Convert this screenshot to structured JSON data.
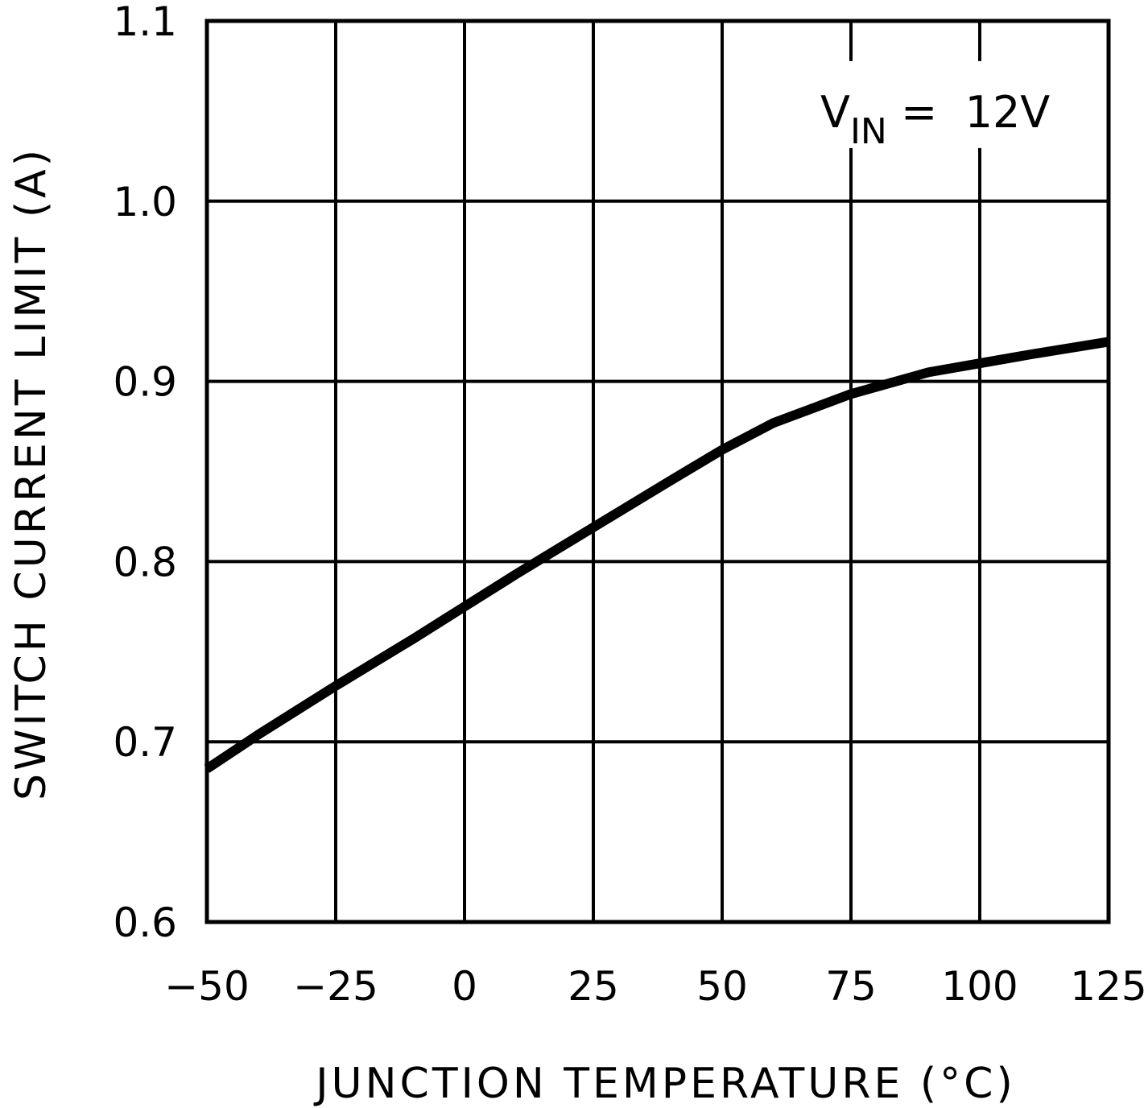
{
  "chart_data": {
    "type": "line",
    "title": "",
    "xlabel": "JUNCTION TEMPERATURE (°C)",
    "ylabel": "SWITCH CURRENT LIMIT (A)",
    "xlim": [
      -50,
      125
    ],
    "ylim": [
      0.6,
      1.1
    ],
    "grid": true,
    "xticks": [
      -50,
      -25,
      0,
      25,
      50,
      75,
      100,
      125
    ],
    "yticks": [
      0.6,
      0.7,
      0.8,
      0.9,
      1.0,
      1.1
    ],
    "xtick_labels": [
      "−50",
      "−25",
      "0",
      "25",
      "50",
      "75",
      "100",
      "125"
    ],
    "ytick_labels": [
      "0.6",
      "0.7",
      "0.8",
      "0.9",
      "1.0",
      "1.1"
    ],
    "annotation": {
      "main": "V",
      "subscript": "IN",
      "rest": " =  12V"
    },
    "series": [
      {
        "x": [
          -50,
          -40,
          -25,
          -10,
          0,
          10,
          25,
          40,
          50,
          60,
          75,
          90,
          100,
          110,
          125
        ],
        "y": [
          0.685,
          0.704,
          0.731,
          0.757,
          0.775,
          0.793,
          0.819,
          0.845,
          0.862,
          0.877,
          0.893,
          0.905,
          0.91,
          0.915,
          0.922
        ]
      }
    ]
  }
}
